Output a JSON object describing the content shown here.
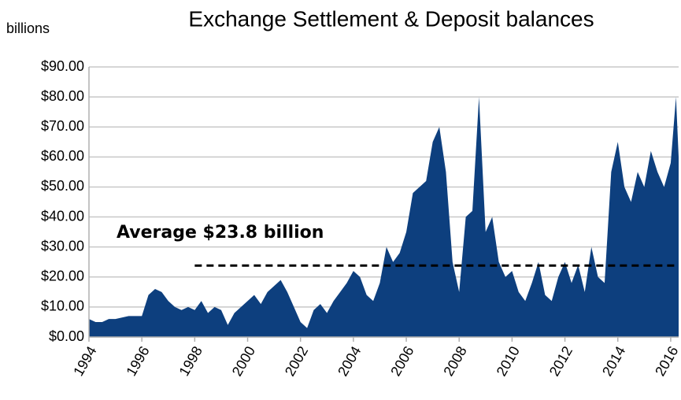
{
  "chart_data": {
    "type": "area",
    "title": "Exchange Settlement & Deposit balances",
    "y_label": "billions",
    "annotation": {
      "label": "Average $23.8 billion",
      "value": 23.8,
      "x_start": 1998
    },
    "x": [
      1994,
      1994.25,
      1994.5,
      1994.75,
      1995,
      1995.25,
      1995.5,
      1995.75,
      1996,
      1996.25,
      1996.5,
      1996.75,
      1997,
      1997.25,
      1997.5,
      1997.75,
      1998,
      1998.25,
      1998.5,
      1998.75,
      1999,
      1999.25,
      1999.5,
      1999.75,
      2000,
      2000.25,
      2000.5,
      2000.75,
      2001,
      2001.25,
      2001.5,
      2001.75,
      2002,
      2002.25,
      2002.5,
      2002.75,
      2003,
      2003.25,
      2003.5,
      2003.75,
      2004,
      2004.25,
      2004.5,
      2004.75,
      2005,
      2005.25,
      2005.5,
      2005.75,
      2006,
      2006.25,
      2006.5,
      2006.75,
      2007,
      2007.25,
      2007.5,
      2007.75,
      2008,
      2008.25,
      2008.5,
      2008.75,
      2009,
      2009.25,
      2009.5,
      2009.75,
      2010,
      2010.25,
      2010.5,
      2010.75,
      2011,
      2011.25,
      2011.5,
      2011.75,
      2012,
      2012.25,
      2012.5,
      2012.75,
      2013,
      2013.25,
      2013.5,
      2013.75,
      2014,
      2014.25,
      2014.5,
      2014.75,
      2015,
      2015.25,
      2015.5,
      2015.75,
      2016,
      2016.2,
      2016.3
    ],
    "series": [
      {
        "name": "Balances",
        "color": "#0d3f7e",
        "values": [
          6,
          5,
          5,
          6,
          6,
          6.5,
          7,
          7,
          7,
          14,
          16,
          15,
          12,
          10,
          9,
          10,
          9,
          12,
          8,
          10,
          9,
          4,
          8,
          10,
          12,
          14,
          11,
          15,
          17,
          19,
          15,
          10,
          5,
          3,
          9,
          11,
          8,
          12,
          15,
          18,
          22,
          20,
          14,
          12,
          18,
          30,
          25,
          28,
          35,
          48,
          50,
          52,
          65,
          70,
          55,
          25,
          15,
          40,
          42,
          80,
          35,
          40,
          25,
          20,
          22,
          15,
          12,
          18,
          25,
          14,
          12,
          20,
          25,
          18,
          24,
          15,
          30,
          20,
          18,
          55,
          65,
          50,
          45,
          55,
          50,
          62,
          55,
          50,
          58,
          80,
          60
        ]
      }
    ],
    "xlim": [
      1994,
      2016.3
    ],
    "xticks": [
      1994,
      1996,
      1998,
      2000,
      2002,
      2004,
      2006,
      2008,
      2010,
      2012,
      2014,
      2016
    ],
    "ylim": [
      0,
      90
    ],
    "yticks": [
      {
        "value": 0,
        "label": "$0.00"
      },
      {
        "value": 10,
        "label": "$10.00"
      },
      {
        "value": 20,
        "label": "$20.00"
      },
      {
        "value": 30,
        "label": "$30.00"
      },
      {
        "value": 40,
        "label": "$40.00"
      },
      {
        "value": 50,
        "label": "$50.00"
      },
      {
        "value": 60,
        "label": "$60.00"
      },
      {
        "value": 70,
        "label": "$70.00"
      },
      {
        "value": 80,
        "label": "$80.00"
      },
      {
        "value": 90,
        "label": "$90.00"
      }
    ],
    "grid": true
  }
}
